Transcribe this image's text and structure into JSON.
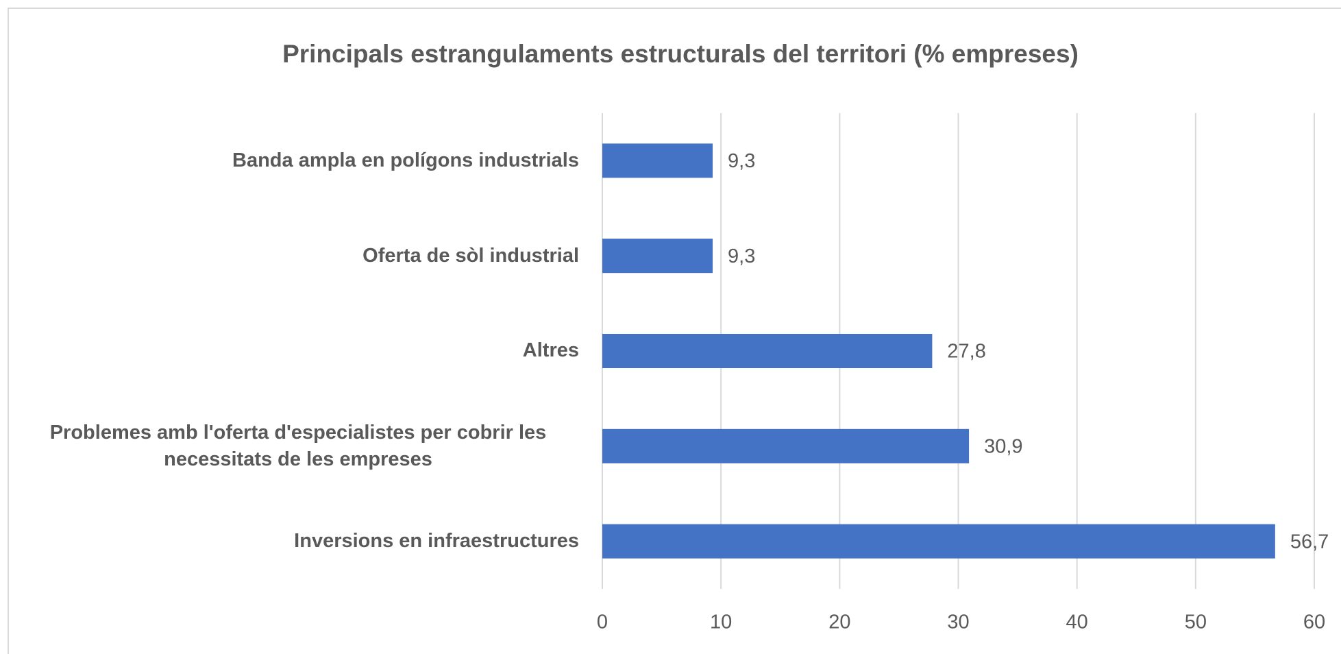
{
  "chart_data": {
    "type": "bar",
    "orientation": "horizontal",
    "title": "Principals estrangulaments estructurals del territori (% empreses)",
    "categories": [
      "Banda ampla en polígons industrials",
      "Oferta de sòl industrial",
      "Altres",
      "Problemes amb l'oferta d'especialistes per cobrir les necessitats de les empreses",
      "Inversions en infraestructures"
    ],
    "values": [
      9.3,
      9.3,
      27.8,
      30.9,
      56.7
    ],
    "value_labels": [
      "9,3",
      "9,3",
      "27,8",
      "30,9",
      "56,7"
    ],
    "color": "#4472c4",
    "xlim": [
      0,
      60
    ],
    "xticks": [
      0,
      10,
      20,
      30,
      40,
      50,
      60
    ],
    "grid": true
  }
}
